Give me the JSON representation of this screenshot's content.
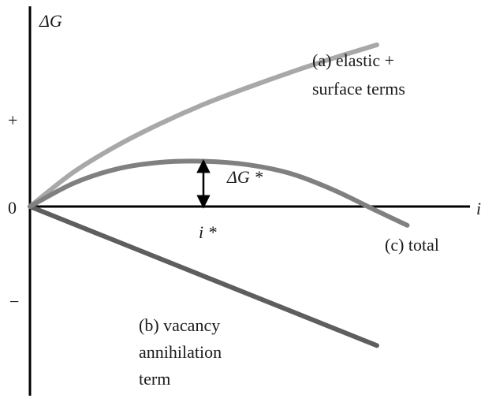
{
  "chart_data": {
    "type": "line",
    "ylabel": "ΔG",
    "xlabel": "i",
    "y_ticks": [
      "+",
      "0",
      "−"
    ],
    "xlim": [
      0,
      10
    ],
    "ylim": [
      -3,
      3
    ],
    "series": [
      {
        "name": "(a) elastic + surface terms",
        "label_lines": [
          "(a) elastic +",
          "surface terms"
        ],
        "color": "#a8a8a8",
        "x": [
          0,
          1,
          2,
          3,
          4,
          5,
          6,
          7,
          8
        ],
        "y": [
          0,
          0.62,
          1.1,
          1.5,
          1.85,
          2.15,
          2.43,
          2.69,
          2.93
        ]
      },
      {
        "name": "(b) vacancy annihilation term",
        "label_lines": [
          "(b) vacancy",
          "annihilation",
          "term"
        ],
        "color": "#5e5e5e",
        "x": [
          0,
          8
        ],
        "y": [
          0,
          -2.52
        ]
      },
      {
        "name": "(c) total",
        "label_lines": [
          "(c) total"
        ],
        "color": "#808080",
        "x": [
          0,
          1,
          2,
          3,
          4,
          5,
          6,
          7,
          8,
          8.7
        ],
        "y": [
          0,
          0.42,
          0.68,
          0.8,
          0.82,
          0.76,
          0.6,
          0.3,
          -0.08,
          -0.34
        ]
      }
    ],
    "annotations": [
      {
        "text": "ΔG *",
        "type": "arrow",
        "x": 4,
        "y_from": 0,
        "y_to": 0.82
      },
      {
        "text": "i *",
        "type": "tick-label",
        "x": 4
      }
    ]
  }
}
